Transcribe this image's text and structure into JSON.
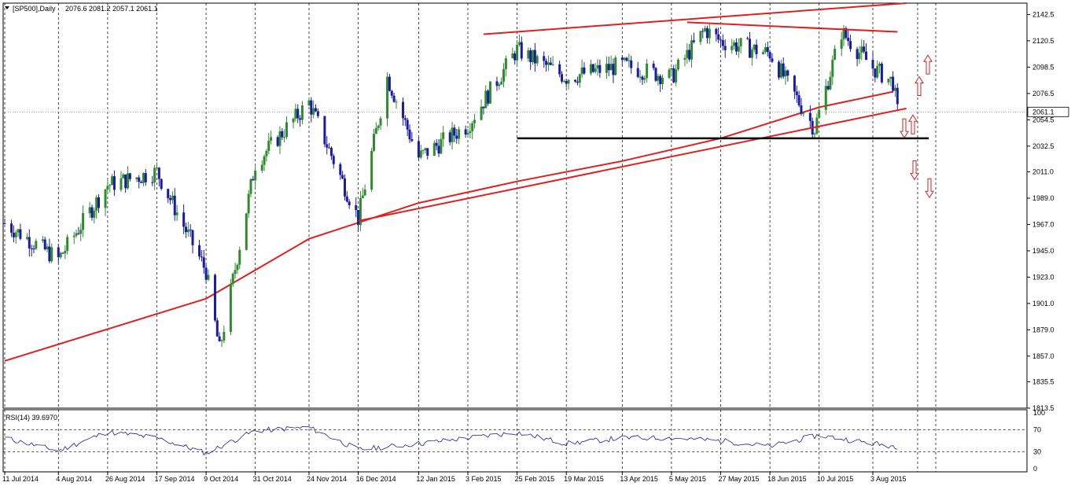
{
  "header": {
    "symbol_label": "[SP500],Daily",
    "ohlc": "2076.6 2081.2 2057.1 2061.1"
  },
  "rsi_panel": {
    "label": "RSI(14) 39.6970",
    "scale": [
      "100",
      "70",
      "30",
      "0"
    ]
  },
  "price_axis": {
    "ticks": [
      "2142.5",
      "2120.5",
      "2098.5",
      "2076.5",
      "2054.5",
      "2032.5",
      "2011.0",
      "1989.0",
      "1967.0",
      "1945.0",
      "1923.0",
      "1901.0",
      "1879.0",
      "1857.0",
      "1835.5",
      "1813.5"
    ],
    "current_price": "2061.1"
  },
  "time_axis": {
    "ticks": [
      "11 Jul 2014",
      "4 Aug 2014",
      "26 Aug 2014",
      "17 Sep 2014",
      "9 Oct 2014",
      "31 Oct 2014",
      "24 Nov 2014",
      "16 Dec 2014",
      "12 Jan 2015",
      "3 Feb 2015",
      "25 Feb 2015",
      "19 Mar 2015",
      "13 Apr 2015",
      "5 May 2015",
      "27 May 2015",
      "18 Jun 2015",
      "10 Jul 2015",
      "3 Aug 2015"
    ]
  },
  "colors": {
    "bull_candle": "#2e8b2e",
    "bear_candle": "#1a1aa8",
    "trend_lines": "#e02020",
    "support_line": "#000000",
    "arrows": "#cc2222",
    "rsi_line": "#1a1aa8"
  },
  "chart_data": {
    "type": "candlestick",
    "instrument": "[SP500]",
    "timeframe": "Daily",
    "last_bar": {
      "open": 2076.6,
      "high": 2081.2,
      "low": 2057.1,
      "close": 2061.1
    },
    "ylim": [
      1813.5,
      2152
    ],
    "key_points": [
      {
        "date": "11 Jul 2014",
        "close": 1968
      },
      {
        "date": "4 Aug 2014",
        "close": 1938
      },
      {
        "date": "26 Aug 2014",
        "close": 2000
      },
      {
        "date": "17 Sep 2014",
        "close": 2011
      },
      {
        "date": "9 Oct 2014",
        "close": 1928
      },
      {
        "date": "15 Oct 2014",
        "close": 1862
      },
      {
        "date": "31 Oct 2014",
        "close": 2018
      },
      {
        "date": "24 Nov 2014",
        "close": 2069
      },
      {
        "date": "16 Dec 2014",
        "close": 1972
      },
      {
        "date": "29 Dec 2014",
        "close": 2090
      },
      {
        "date": "12 Jan 2015",
        "close": 2023
      },
      {
        "date": "3 Feb 2015",
        "close": 2050
      },
      {
        "date": "25 Feb 2015",
        "close": 2113
      },
      {
        "date": "19 Mar 2015",
        "close": 2090
      },
      {
        "date": "13 Apr 2015",
        "close": 2100
      },
      {
        "date": "5 May 2015",
        "close": 2090
      },
      {
        "date": "20 May 2015",
        "close": 2130
      },
      {
        "date": "27 May 2015",
        "close": 2120
      },
      {
        "date": "18 Jun 2015",
        "close": 2110
      },
      {
        "date": "8 Jul 2015",
        "close": 2047
      },
      {
        "date": "20 Jul 2015",
        "close": 2128
      },
      {
        "date": "3 Aug 2015",
        "close": 2098
      },
      {
        "date": "12 Aug 2015",
        "close": 2086
      },
      {
        "date": "14 Aug 2015",
        "close": 2061.1
      }
    ],
    "rsi": {
      "period": 14,
      "last": 39.697,
      "levels": [
        70,
        30
      ],
      "ylim": [
        0,
        100
      ],
      "key_points": [
        {
          "date": "11 Jul 2014",
          "value": 55
        },
        {
          "date": "4 Aug 2014",
          "value": 32
        },
        {
          "date": "26 Aug 2014",
          "value": 66
        },
        {
          "date": "17 Sep 2014",
          "value": 55
        },
        {
          "date": "9 Oct 2014",
          "value": 28
        },
        {
          "date": "31 Oct 2014",
          "value": 68
        },
        {
          "date": "24 Nov 2014",
          "value": 74
        },
        {
          "date": "16 Dec 2014",
          "value": 34
        },
        {
          "date": "12 Jan 2015",
          "value": 45
        },
        {
          "date": "3 Feb 2015",
          "value": 55
        },
        {
          "date": "25 Feb 2015",
          "value": 65
        },
        {
          "date": "19 Mar 2015",
          "value": 45
        },
        {
          "date": "13 Apr 2015",
          "value": 55
        },
        {
          "date": "5 May 2015",
          "value": 55
        },
        {
          "date": "27 May 2015",
          "value": 50
        },
        {
          "date": "18 Jun 2015",
          "value": 40
        },
        {
          "date": "10 Jul 2015",
          "value": 60
        },
        {
          "date": "3 Aug 2015",
          "value": 45
        },
        {
          "date": "14 Aug 2015",
          "value": 39.697
        }
      ]
    },
    "annotations": {
      "rising_channel_upper": {
        "from": {
          "date": "10 Feb 2015",
          "price": 2126
        },
        "to": {
          "date": "18 Aug 2015",
          "price": 2152
        }
      },
      "falling_top_line": {
        "from": {
          "date": "12 May 2015",
          "price": 2136
        },
        "to": {
          "date": "14 Aug 2015",
          "price": 2128
        }
      },
      "rising_support_line": {
        "from": {
          "date": "16 Dec 2014",
          "price": 1970
        },
        "to": {
          "date": "18 Aug 2015",
          "price": 2064
        }
      },
      "horizontal_support": {
        "price": 2039,
        "from": "25 Feb 2015",
        "to": "28 Aug 2015"
      },
      "moving_average": [
        {
          "date": "11 Jul 2014",
          "price": 1853
        },
        {
          "date": "9 Oct 2014",
          "price": 1905
        },
        {
          "date": "24 Nov 2014",
          "price": 1955
        },
        {
          "date": "12 Jan 2015",
          "price": 1985
        },
        {
          "date": "25 Feb 2015",
          "price": 2003
        },
        {
          "date": "13 Apr 2015",
          "price": 2020
        },
        {
          "date": "27 May 2015",
          "price": 2039
        },
        {
          "date": "10 Jul 2015",
          "price": 2065
        },
        {
          "date": "12 Aug 2015",
          "price": 2078
        }
      ],
      "arrows": [
        {
          "direction": "up",
          "price": 2098
        },
        {
          "direction": "up",
          "price": 2080
        },
        {
          "direction": "down",
          "price": 2050
        },
        {
          "direction": "up",
          "price": 2048
        },
        {
          "direction": "down",
          "price": 2015
        },
        {
          "direction": "down",
          "price": 2000
        }
      ]
    }
  }
}
